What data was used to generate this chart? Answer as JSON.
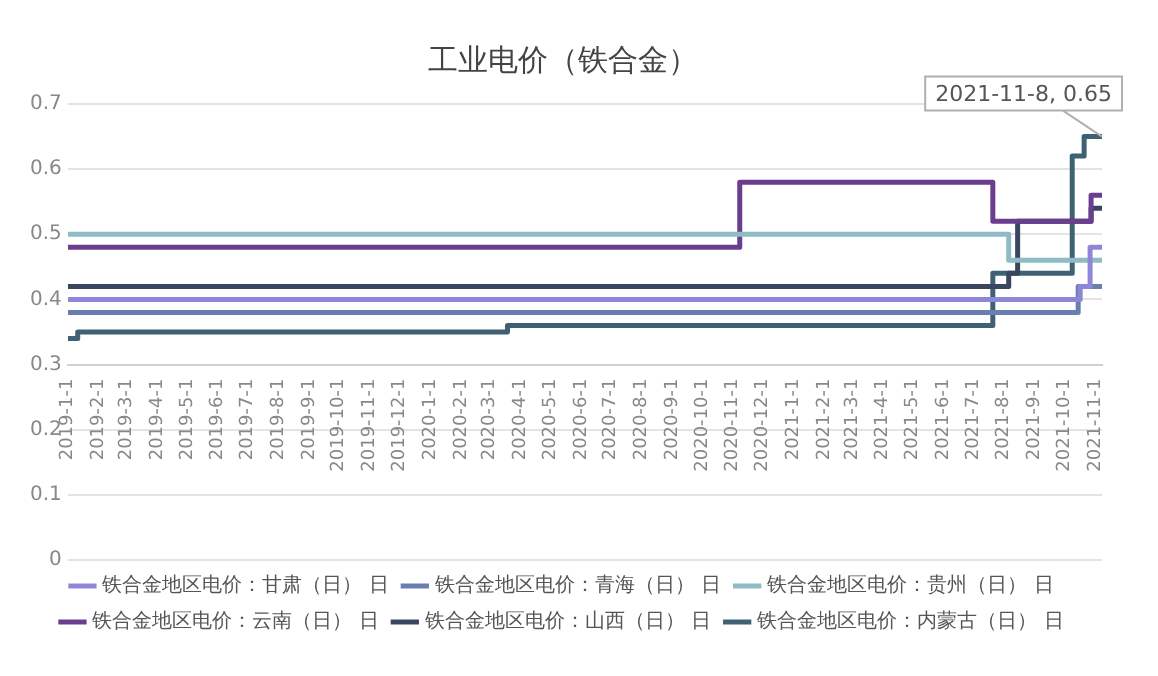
{
  "chart_data": {
    "type": "step",
    "title": "工业电价（铁合金）",
    "xlim": [
      "2019-01-01",
      "2021-11-08"
    ],
    "xticks": [
      {
        "value": "2019-01-01",
        "label": "2019-1-1"
      },
      {
        "value": "2019-02-01",
        "label": "2019-2-1"
      },
      {
        "value": "2019-03-01",
        "label": "2019-3-1"
      },
      {
        "value": "2019-04-01",
        "label": "2019-4-1"
      },
      {
        "value": "2019-05-01",
        "label": "2019-5-1"
      },
      {
        "value": "2019-06-01",
        "label": "2019-6-1"
      },
      {
        "value": "2019-07-01",
        "label": "2019-7-1"
      },
      {
        "value": "2019-08-01",
        "label": "2019-8-1"
      },
      {
        "value": "2019-09-01",
        "label": "2019-9-1"
      },
      {
        "value": "2019-10-01",
        "label": "2019-10-1"
      },
      {
        "value": "2019-11-01",
        "label": "2019-11-1"
      },
      {
        "value": "2019-12-01",
        "label": "2019-12-1"
      },
      {
        "value": "2020-01-01",
        "label": "2020-1-1"
      },
      {
        "value": "2020-02-01",
        "label": "2020-2-1"
      },
      {
        "value": "2020-03-01",
        "label": "2020-3-1"
      },
      {
        "value": "2020-04-01",
        "label": "2020-4-1"
      },
      {
        "value": "2020-05-01",
        "label": "2020-5-1"
      },
      {
        "value": "2020-06-01",
        "label": "2020-6-1"
      },
      {
        "value": "2020-07-01",
        "label": "2020-7-1"
      },
      {
        "value": "2020-08-01",
        "label": "2020-8-1"
      },
      {
        "value": "2020-09-01",
        "label": "2020-9-1"
      },
      {
        "value": "2020-10-01",
        "label": "2020-10-1"
      },
      {
        "value": "2020-11-01",
        "label": "2020-11-1"
      },
      {
        "value": "2020-12-01",
        "label": "2020-12-1"
      },
      {
        "value": "2021-01-01",
        "label": "2021-1-1"
      },
      {
        "value": "2021-02-01",
        "label": "2021-2-1"
      },
      {
        "value": "2021-03-01",
        "label": "2021-3-1"
      },
      {
        "value": "2021-04-01",
        "label": "2021-4-1"
      },
      {
        "value": "2021-05-01",
        "label": "2021-5-1"
      },
      {
        "value": "2021-06-01",
        "label": "2021-6-1"
      },
      {
        "value": "2021-07-01",
        "label": "2021-7-1"
      },
      {
        "value": "2021-08-01",
        "label": "2021-8-1"
      },
      {
        "value": "2021-09-01",
        "label": "2021-9-1"
      },
      {
        "value": "2021-10-01",
        "label": "2021-10-1"
      },
      {
        "value": "2021-11-01",
        "label": "2021-11-1"
      }
    ],
    "ylim": [
      0,
      0.7
    ],
    "yticks": [
      0,
      0.1,
      0.2,
      0.3,
      0.4,
      0.5,
      0.6,
      0.7
    ],
    "grid": "y",
    "legend": "bottom",
    "marker": "none",
    "line_style": "solid",
    "annotations": [
      {
        "text": "2021-11-8, 0.65",
        "x": "2021-11-08",
        "y": 0.65
      }
    ],
    "series": [
      {
        "name": "铁合金地区电价：甘肃（日） 日",
        "color": "#8e86d6",
        "x": [
          "2019-01-01",
          "2021-10-17",
          "2021-10-27",
          "2021-11-08"
        ],
        "values": [
          0.4,
          0.42,
          0.48,
          0.48
        ]
      },
      {
        "name": "铁合金地区电价：青海（日） 日",
        "color": "#6a7fb0",
        "x": [
          "2019-01-01",
          "2021-10-15",
          "2021-11-08"
        ],
        "values": [
          0.38,
          0.42,
          0.42
        ]
      },
      {
        "name": "铁合金地区电价：贵州（日） 日",
        "color": "#8fbcc4",
        "x": [
          "2019-01-01",
          "2021-08-06",
          "2021-11-08"
        ],
        "values": [
          0.5,
          0.46,
          0.46
        ]
      },
      {
        "name": "铁合金地区电价：云南（日） 日",
        "color": "#6a3d8e",
        "x": [
          "2019-01-01",
          "2020-11-08",
          "2021-07-21",
          "2021-10-28",
          "2021-11-08"
        ],
        "values": [
          0.48,
          0.58,
          0.52,
          0.56,
          0.56
        ]
      },
      {
        "name": "铁合金地区电价：山西（日） 日",
        "color": "#3a4560",
        "x": [
          "2019-01-01",
          "2021-08-06",
          "2021-08-15",
          "2021-10-28",
          "2021-11-08"
        ],
        "values": [
          0.42,
          0.44,
          0.52,
          0.54,
          0.54
        ]
      },
      {
        "name": "铁合金地区电价：内蒙古（日） 日",
        "color": "#3f6173",
        "x": [
          "2019-01-01",
          "2019-01-11",
          "2020-03-19",
          "2021-07-21",
          "2021-10-09",
          "2021-10-21",
          "2021-11-08"
        ],
        "values": [
          0.34,
          0.35,
          0.36,
          0.44,
          0.62,
          0.65,
          0.65
        ]
      }
    ]
  }
}
